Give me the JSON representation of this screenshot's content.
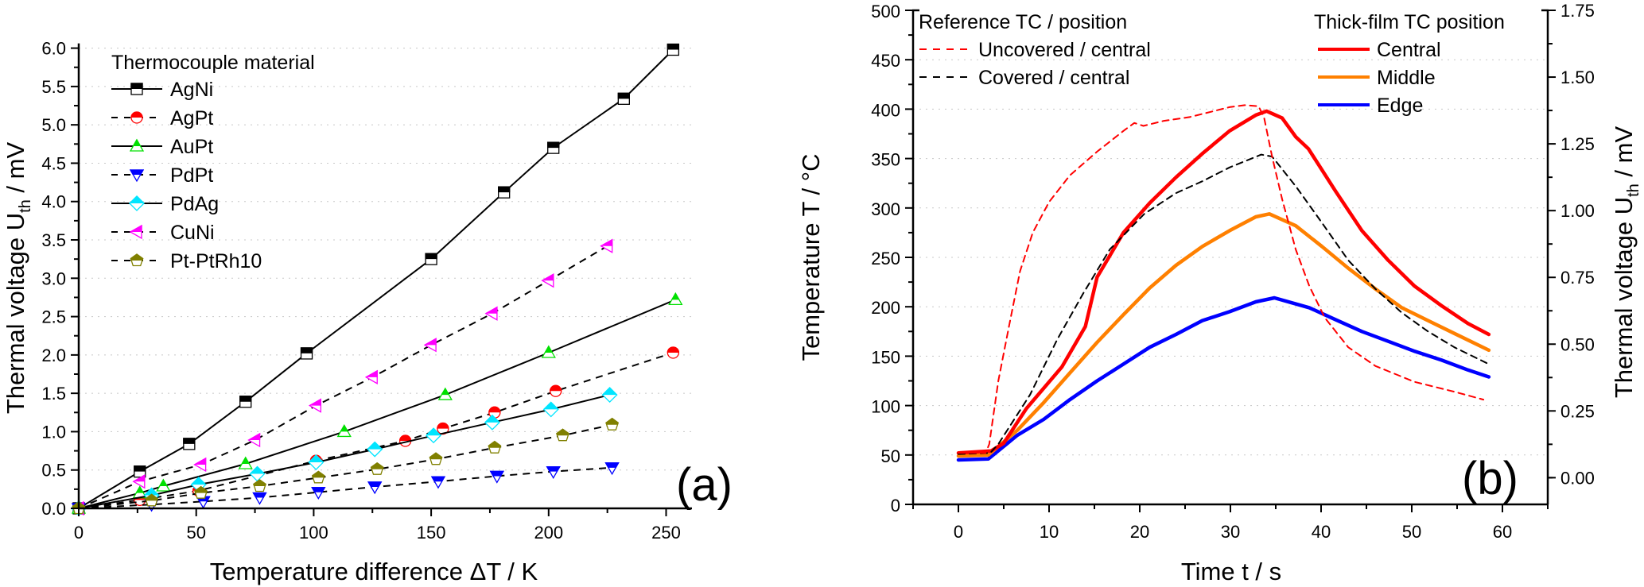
{
  "chart_data": [
    {
      "panel": "(a)",
      "type": "line",
      "title": "",
      "xlabel": "Temperature difference ΔT / K",
      "ylabel": "Thermal voltage U_th / mV",
      "ylabel_main": "Thermal voltage U",
      "ylabel_sub": "th",
      "ylabel_tail": " / mV",
      "xlim": [
        0,
        261
      ],
      "ylim": [
        0,
        6.0
      ],
      "xticks": [
        0,
        50,
        100,
        150,
        200,
        250
      ],
      "xtick_labels": [
        "0",
        "50",
        "100",
        "150",
        "200",
        "250"
      ],
      "yticks": [
        0,
        0.5,
        1.0,
        1.5,
        2.0,
        2.5,
        3.0,
        3.5,
        4.0,
        4.5,
        5.0,
        5.5,
        6.0
      ],
      "ytick_labels": [
        "0.0",
        "0.5",
        "1.0",
        "1.5",
        "2.0",
        "2.5",
        "3.0",
        "3.5",
        "4.0",
        "4.5",
        "5.0",
        "5.5",
        "6.0"
      ],
      "grid": true,
      "legend_title": "Thermocouple material",
      "legend_position": "top-left",
      "series": [
        {
          "name": "AgNi",
          "color": "#000000",
          "marker": "square",
          "line": "solid",
          "x": [
            0,
            26,
            47,
            71,
            97,
            150,
            181,
            202,
            232,
            253
          ],
          "y": [
            0,
            0.48,
            0.84,
            1.39,
            2.02,
            3.25,
            4.12,
            4.7,
            5.34,
            5.98
          ]
        },
        {
          "name": "AgPt",
          "color": "#ff0000",
          "marker": "circle",
          "line": "dashed",
          "x": [
            0,
            26,
            51,
            101,
            139,
            155,
            177,
            203,
            253
          ],
          "y": [
            0,
            0.11,
            0.23,
            0.62,
            0.88,
            1.04,
            1.25,
            1.53,
            2.03
          ]
        },
        {
          "name": "AuPt",
          "color": "#00e000",
          "marker": "triangle-up",
          "line": "solid",
          "x": [
            0,
            26,
            36,
            71,
            113,
            156,
            200,
            254
          ],
          "y": [
            0,
            0.2,
            0.29,
            0.58,
            1.0,
            1.48,
            2.03,
            2.72
          ]
        },
        {
          "name": "PdPt",
          "color": "#0000ff",
          "marker": "triangle-down",
          "line": "dashed",
          "x": [
            0,
            31,
            53,
            77,
            102,
            126,
            153,
            178,
            202,
            227
          ],
          "y": [
            0,
            0.05,
            0.09,
            0.14,
            0.21,
            0.28,
            0.35,
            0.42,
            0.48,
            0.53
          ]
        },
        {
          "name": "PdAg",
          "color": "#00e5ff",
          "marker": "diamond",
          "line": "solid",
          "x": [
            0,
            31,
            51,
            76,
            101,
            126,
            151,
            176,
            201,
            226
          ],
          "y": [
            0,
            0.17,
            0.31,
            0.45,
            0.6,
            0.77,
            0.95,
            1.12,
            1.29,
            1.48
          ]
        },
        {
          "name": "CuNi",
          "color": "#ff00ff",
          "marker": "triangle-left",
          "line": "dashed",
          "x": [
            0,
            26,
            52,
            75,
            101,
            125,
            150,
            176,
            200,
            225
          ],
          "y": [
            0,
            0.35,
            0.57,
            0.89,
            1.34,
            1.71,
            2.13,
            2.54,
            2.97,
            3.42
          ]
        },
        {
          "name": "Pt-PtRh10",
          "color": "#808000",
          "marker": "pentagon",
          "line": "dashed",
          "x": [
            0,
            31,
            52,
            77,
            102,
            127,
            152,
            177,
            206,
            227
          ],
          "y": [
            0,
            0.1,
            0.2,
            0.29,
            0.4,
            0.51,
            0.64,
            0.79,
            0.95,
            1.09
          ]
        }
      ]
    },
    {
      "panel": "(b)",
      "type": "line",
      "title": "",
      "xlabel": "Time t / s",
      "ylabel": "Temperature T / °C",
      "y2label": "Thermal voltage U_th / mV",
      "y2label_main": "Thermal voltage U",
      "y2label_sub": "th",
      "y2label_tail": " / mV",
      "xlim": [
        -5,
        65
      ],
      "ylim": [
        0,
        500
      ],
      "y2lim": [
        -0.1,
        1.75
      ],
      "xticks": [
        0,
        10,
        20,
        30,
        40,
        50,
        60
      ],
      "xtick_labels": [
        "0",
        "10",
        "20",
        "30",
        "40",
        "50",
        "60"
      ],
      "yticks": [
        0,
        50,
        100,
        150,
        200,
        250,
        300,
        350,
        400,
        450,
        500
      ],
      "ytick_labels": [
        "0",
        "50",
        "100",
        "150",
        "200",
        "250",
        "300",
        "350",
        "400",
        "450",
        "500"
      ],
      "y2ticks": [
        0.0,
        0.25,
        0.5,
        0.75,
        1.0,
        1.25,
        1.5,
        1.75
      ],
      "y2tick_labels": [
        "0.00",
        "0.25",
        "0.50",
        "0.75",
        "1.00",
        "1.25",
        "1.50",
        "1.75"
      ],
      "grid": true,
      "legends": [
        {
          "title": "Reference TC / position",
          "position": "top-left",
          "entries": [
            "Uncovered / central",
            "Covered / central"
          ]
        },
        {
          "title": "Thick-film TC position",
          "position": "top-right",
          "entries": [
            "Central",
            "Middle",
            "Edge"
          ]
        }
      ],
      "series": [
        {
          "name": "Uncovered / central",
          "group": "Reference TC",
          "color": "#ff0000",
          "line": "dashed",
          "axis": "left",
          "x": [
            0,
            3.0,
            3.4,
            4.4,
            5.6,
            6.8,
            8.2,
            10.0,
            12.3,
            15.3,
            18.2,
            19.4,
            20.4,
            22.6,
            25.5,
            29.9,
            31.6,
            33.1,
            33.7,
            34.6,
            35.7,
            37.2,
            38.7,
            40.4,
            43.0,
            46.0,
            50.3,
            54.7,
            57.9
          ],
          "y": [
            52,
            52,
            61,
            125,
            181,
            236,
            275,
            306,
            333,
            357,
            378,
            386,
            383,
            388,
            392,
            402,
            404,
            403,
            392,
            352,
            309,
            258,
            221,
            189,
            159,
            140,
            124,
            114,
            106
          ]
        },
        {
          "name": "Covered / central",
          "group": "Reference TC",
          "color": "#000000",
          "line": "dashed",
          "axis": "left",
          "x": [
            0,
            3.5,
            4.4,
            7.9,
            10.9,
            13.8,
            16.7,
            20.5,
            24.0,
            26.9,
            29.9,
            33.4,
            34.6,
            37.2,
            40.1,
            43.0,
            46.0,
            48.9,
            51.8,
            54.7,
            58.5
          ],
          "y": [
            51,
            52,
            61,
            111,
            167,
            214,
            258,
            294,
            315,
            327,
            341,
            354,
            352,
            322,
            285,
            247,
            218,
            194,
            175,
            159,
            142
          ]
        },
        {
          "name": "Central",
          "group": "Thick-film TC",
          "color": "#ff0000",
          "line": "solid",
          "axis": "left",
          "x": [
            0,
            3.6,
            5.0,
            7.5,
            11.4,
            14.0,
            15.3,
            18.2,
            21.1,
            24.0,
            26.9,
            29.9,
            32.8,
            34.0,
            35.7,
            37.2,
            38.6,
            41.6,
            44.5,
            47.4,
            50.3,
            53.3,
            56.2,
            58.5
          ],
          "y": [
            52,
            54,
            62,
            97,
            139,
            180,
            230,
            275,
            305,
            331,
            355,
            378,
            394,
            398,
            391,
            372,
            360,
            317,
            277,
            247,
            221,
            201,
            183,
            172
          ]
        },
        {
          "name": "Middle",
          "group": "Thick-film TC",
          "color": "#ff8000",
          "line": "solid",
          "axis": "left",
          "x": [
            0,
            3.3,
            6.5,
            9.4,
            12.3,
            15.3,
            18.2,
            21.1,
            24.0,
            26.9,
            29.9,
            32.8,
            34.3,
            37.2,
            40.1,
            43.0,
            46.0,
            48.9,
            51.8,
            54.7,
            58.5
          ],
          "y": [
            49,
            50,
            75,
            103,
            133,
            164,
            192,
            219,
            242,
            261,
            277,
            291,
            294,
            282,
            261,
            239,
            218,
            199,
            186,
            173,
            156
          ]
        },
        {
          "name": "Edge",
          "group": "Thick-film TC",
          "color": "#0000ff",
          "line": "solid",
          "axis": "left",
          "x": [
            0,
            3.3,
            6.5,
            9.4,
            12.3,
            15.3,
            18.2,
            21.1,
            24.0,
            26.9,
            29.9,
            32.8,
            34.85,
            38.7,
            41.6,
            44.5,
            47.4,
            50.3,
            53.3,
            56.2,
            58.5
          ],
          "y": [
            45,
            46,
            70,
            86,
            106,
            125,
            142,
            159,
            172,
            186,
            195,
            205,
            209,
            199,
            187,
            175,
            165,
            155,
            146,
            136,
            129
          ]
        }
      ]
    }
  ]
}
